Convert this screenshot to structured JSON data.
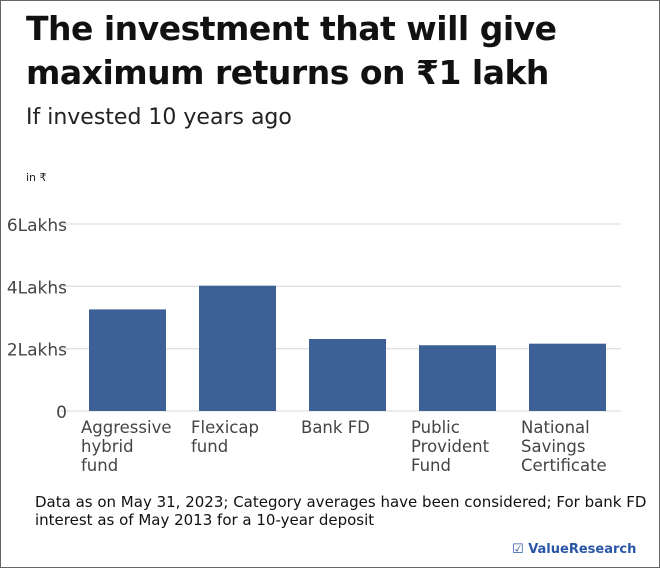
{
  "title": "The investment that will give maximum returns on ₹1 lakh",
  "subtitle": "If invested 10 years ago",
  "unit_label": "in ₹",
  "note_line1": "Data as on May 31, 2023; Category averages have been considered; For bank FD",
  "note_line2": "interest as of May 2013 for a 10-year deposit",
  "logo": "ValueResearch",
  "chart_data": {
    "type": "bar",
    "categories": [
      [
        "Aggressive",
        "hybrid",
        "fund"
      ],
      [
        "Flexicap",
        "fund"
      ],
      [
        "Bank FD"
      ],
      [
        "Public",
        "Provident",
        "Fund"
      ],
      [
        "National",
        "Savings",
        "Certificate"
      ]
    ],
    "values": [
      3.26,
      4.02,
      2.31,
      2.11,
      2.16
    ],
    "unit": "Lakhs",
    "ylim": [
      0,
      6
    ],
    "yticks": [
      0,
      2,
      4,
      6
    ],
    "ytick_labels": [
      "0",
      "2Lakhs",
      "4Lakhs",
      "6Lakhs"
    ],
    "bar_color": "#3d6197",
    "grid": true
  }
}
